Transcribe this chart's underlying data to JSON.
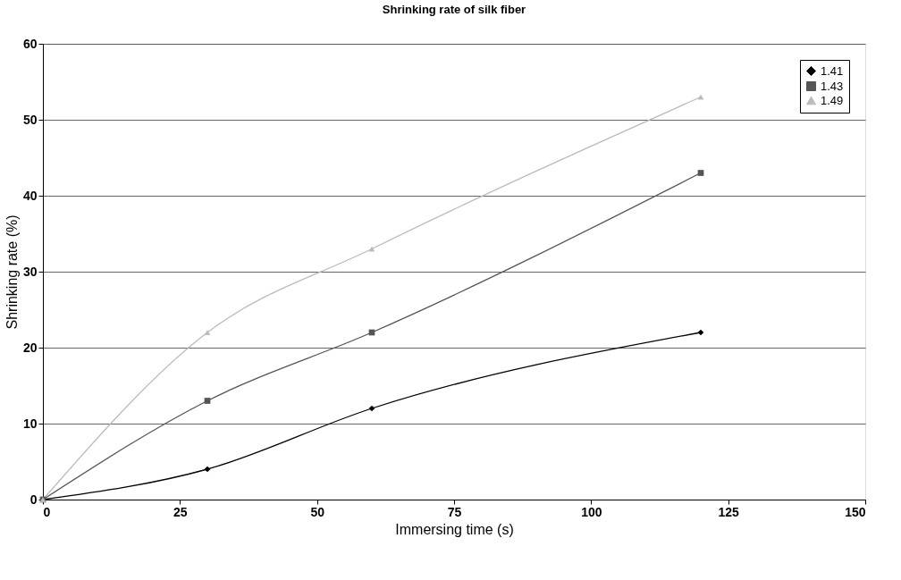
{
  "chart_data": {
    "type": "line",
    "title": "Shrinking rate of silk fiber",
    "xlabel": "Immersing time (s)",
    "ylabel": "Shrinking rate (%)",
    "x": [
      0,
      30,
      60,
      120
    ],
    "series": [
      {
        "name": "1.41",
        "color": "#000000",
        "marker": "diamond",
        "values": [
          0,
          4,
          12,
          22
        ]
      },
      {
        "name": "1.43",
        "color": "#555555",
        "marker": "square",
        "values": [
          0,
          13,
          22,
          43
        ]
      },
      {
        "name": "1.49",
        "color": "#bbbbbb",
        "marker": "triangle",
        "values": [
          0,
          22,
          33,
          53
        ]
      }
    ],
    "xlim": [
      0,
      150
    ],
    "xticks": [
      0,
      25,
      50,
      75,
      100,
      125,
      150
    ],
    "ylim": [
      0,
      60
    ],
    "yticks": [
      0,
      10,
      20,
      30,
      40,
      50,
      60
    ],
    "grid": "y",
    "legend": "top right",
    "line_style": "solid"
  }
}
